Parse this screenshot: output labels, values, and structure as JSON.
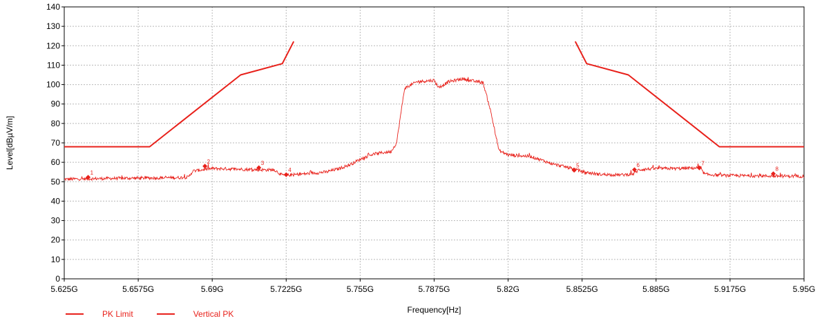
{
  "chart_data": {
    "type": "line",
    "title": "",
    "xlabel": "Frequency[Hz]",
    "ylabel": "Level[dBµV/m]",
    "xlim": [
      5.625,
      5.95
    ],
    "ylim": [
      0,
      140
    ],
    "x_tick_labels": [
      "5.625G",
      "5.6575G",
      "5.69G",
      "5.7225G",
      "5.755G",
      "5.7875G",
      "5.82G",
      "5.8525G",
      "5.885G",
      "5.9175G",
      "5.95G"
    ],
    "y_tick_labels": [
      "0",
      "10",
      "20",
      "30",
      "40",
      "50",
      "60",
      "70",
      "80",
      "90",
      "100",
      "110",
      "120",
      "130",
      "140"
    ],
    "grid": true,
    "legend_position": "bottom-left",
    "series": [
      {
        "name": "PK Limit",
        "color": "#e8201a",
        "segments": [
          [
            [
              5.625,
              68
            ],
            [
              5.6625,
              68
            ],
            [
              5.7025,
              105
            ],
            [
              5.7208,
              110.8
            ],
            [
              5.7258,
              122.2
            ]
          ],
          [
            [
              5.8495,
              122.2
            ],
            [
              5.8545,
              110.8
            ],
            [
              5.8728,
              105
            ],
            [
              5.9128,
              68
            ],
            [
              5.95,
              68
            ]
          ]
        ]
      },
      {
        "name": "Vertical PK",
        "color": "#e8201a",
        "points": [
          [
            5.625,
            51.3
          ],
          [
            5.645,
            51.7
          ],
          [
            5.66,
            51.9
          ],
          [
            5.675,
            52.1
          ],
          [
            5.6795,
            52.3
          ],
          [
            5.6815,
            55.5
          ],
          [
            5.69,
            56.8
          ],
          [
            5.7,
            56.5
          ],
          [
            5.71,
            56.2
          ],
          [
            5.7175,
            56
          ],
          [
            5.7205,
            53.5
          ],
          [
            5.7225,
            53.3
          ],
          [
            5.73,
            54
          ],
          [
            5.74,
            55
          ],
          [
            5.745,
            56.5
          ],
          [
            5.75,
            58.5
          ],
          [
            5.755,
            61.5
          ],
          [
            5.76,
            64
          ],
          [
            5.765,
            65
          ],
          [
            5.7685,
            65.5
          ],
          [
            5.771,
            70
          ],
          [
            5.7745,
            98
          ],
          [
            5.78,
            101.5
          ],
          [
            5.7875,
            102.2
          ],
          [
            5.7895,
            98.5
          ],
          [
            5.794,
            101.5
          ],
          [
            5.8,
            103
          ],
          [
            5.806,
            101.5
          ],
          [
            5.809,
            101
          ],
          [
            5.812,
            88
          ],
          [
            5.816,
            66
          ],
          [
            5.82,
            63.8
          ],
          [
            5.83,
            63
          ],
          [
            5.835,
            61
          ],
          [
            5.84,
            59
          ],
          [
            5.8495,
            56.5
          ],
          [
            5.853,
            55
          ],
          [
            5.86,
            53.8
          ],
          [
            5.87,
            53.5
          ],
          [
            5.875,
            54
          ],
          [
            5.8775,
            56.2
          ],
          [
            5.885,
            56.8
          ],
          [
            5.895,
            56.8
          ],
          [
            5.9,
            57
          ],
          [
            5.904,
            57.2
          ],
          [
            5.9065,
            53.8
          ],
          [
            5.915,
            53.2
          ],
          [
            5.93,
            53
          ],
          [
            5.95,
            52.8
          ]
        ]
      }
    ],
    "markers": [
      {
        "label": "1",
        "x": 5.6355,
        "y": 52.3
      },
      {
        "label": "2",
        "x": 5.6868,
        "y": 58
      },
      {
        "label": "3",
        "x": 5.7105,
        "y": 57.2
      },
      {
        "label": "4",
        "x": 5.7225,
        "y": 53.6
      },
      {
        "label": "5",
        "x": 5.849,
        "y": 55.9
      },
      {
        "label": "6",
        "x": 5.8755,
        "y": 56.2
      },
      {
        "label": "7",
        "x": 5.904,
        "y": 57.1
      },
      {
        "label": "8",
        "x": 5.9365,
        "y": 54.1
      }
    ]
  }
}
